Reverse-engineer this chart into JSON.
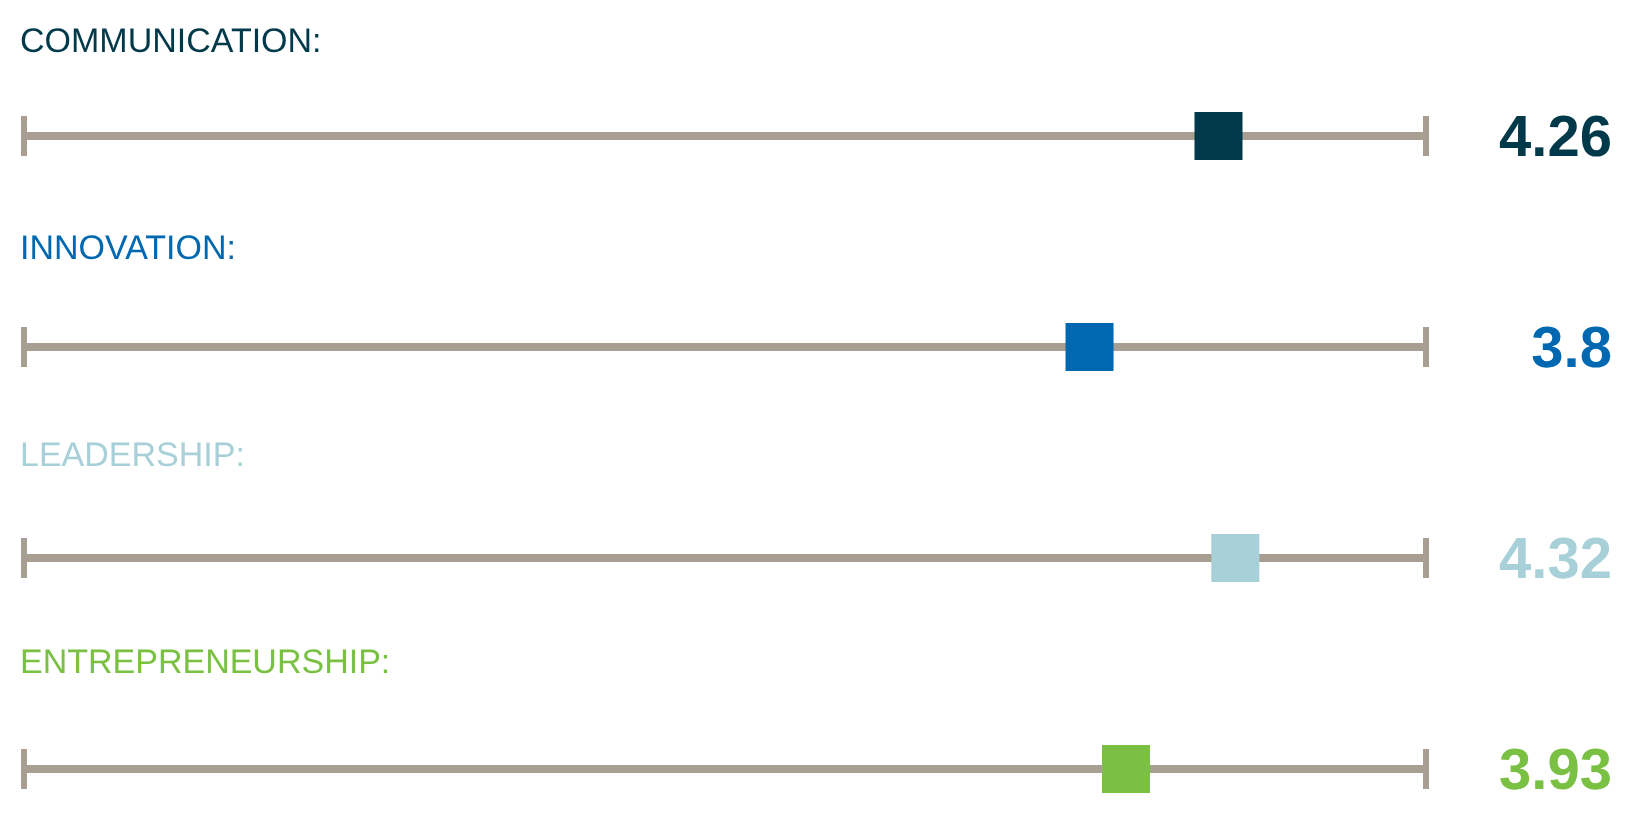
{
  "chart_data": {
    "type": "other",
    "annotations": [
      "COMMUNICATION:",
      "INNOVATION:",
      "LEADERSHIP:",
      "ENTREPRENEURSHIP:"
    ],
    "values": [
      4.26,
      3.8,
      4.32,
      3.93
    ],
    "colors": [
      "#003a4a",
      "#0068b0",
      "#a8d0d8",
      "#7ac143"
    ],
    "data_labels": true
  }
}
